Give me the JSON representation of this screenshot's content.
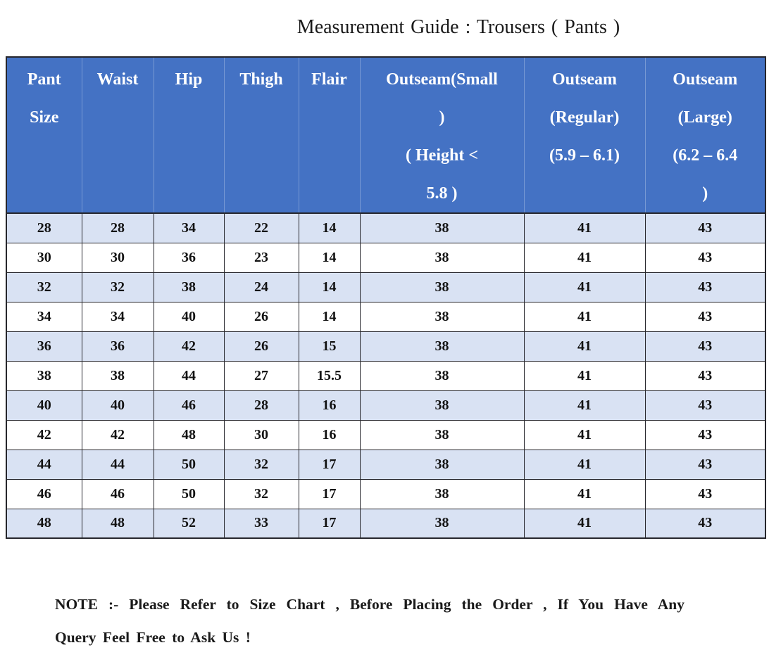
{
  "page": {
    "title": "Measurement Guide : Trousers ( Pants )"
  },
  "table": {
    "columns": [
      {
        "label": "Pant Size",
        "lines": [
          "Pant",
          "Size"
        ]
      },
      {
        "label": "Waist",
        "lines": [
          "Waist"
        ]
      },
      {
        "label": "Hip",
        "lines": [
          "Hip"
        ]
      },
      {
        "label": "Thigh",
        "lines": [
          "Thigh"
        ]
      },
      {
        "label": "Flair",
        "lines": [
          "Flair"
        ]
      },
      {
        "label": "Outseam(Small) ( Height < 5.8 )",
        "lines": [
          "Outseam(Small",
          ")",
          "( Height <",
          "5.8 )"
        ]
      },
      {
        "label": "Outseam (Regular) (5.9 – 6.1)",
        "lines": [
          "Outseam",
          "(Regular)",
          "(5.9 – 6.1)"
        ]
      },
      {
        "label": "Outseam (Large) (6.2 – 6.4 )",
        "lines": [
          "Outseam",
          "(Large)",
          "(6.2 – 6.4",
          ")"
        ]
      }
    ],
    "rows": [
      [
        "28",
        "28",
        "34",
        "22",
        "14",
        "38",
        "41",
        "43"
      ],
      [
        "30",
        "30",
        "36",
        "23",
        "14",
        "38",
        "41",
        "43"
      ],
      [
        "32",
        "32",
        "38",
        "24",
        "14",
        "38",
        "41",
        "43"
      ],
      [
        "34",
        "34",
        "40",
        "26",
        "14",
        "38",
        "41",
        "43"
      ],
      [
        "36",
        "36",
        "42",
        "26",
        "15",
        "38",
        "41",
        "43"
      ],
      [
        "38",
        "38",
        "44",
        "27",
        "15.5",
        "38",
        "41",
        "43"
      ],
      [
        "40",
        "40",
        "46",
        "28",
        "16",
        "38",
        "41",
        "43"
      ],
      [
        "42",
        "42",
        "48",
        "30",
        "16",
        "38",
        "41",
        "43"
      ],
      [
        "44",
        "44",
        "50",
        "32",
        "17",
        "38",
        "41",
        "43"
      ],
      [
        "46",
        "46",
        "50",
        "32",
        "17",
        "38",
        "41",
        "43"
      ],
      [
        "48",
        "48",
        "52",
        "33",
        "17",
        "38",
        "41",
        "43"
      ]
    ]
  },
  "note": {
    "line1": "NOTE :- Please Refer to Size Chart , Before Placing the Order , If You Have Any",
    "line2": "Query Feel Free to Ask Us !"
  },
  "colors": {
    "header_bg": "#4472C4",
    "header_text": "#FFFFFF",
    "band_row_bg": "#D9E2F3",
    "row_bg": "#FFFFFF",
    "border": "#26262C",
    "text": "#121212"
  }
}
